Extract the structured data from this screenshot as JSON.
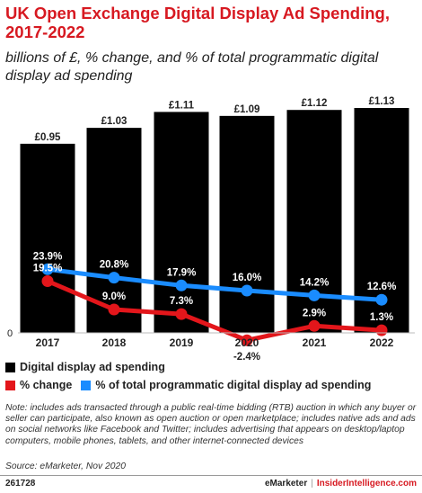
{
  "title": "UK Open Exchange Digital Display Ad Spending, 2017-2022",
  "subtitle": "billions of £, % change, and % of total programmatic digital display ad spending",
  "colors": {
    "bars": "#000000",
    "change": "#e3161b",
    "share": "#1a8cff",
    "title": "#d71921"
  },
  "chart_data": {
    "type": "bar",
    "categories": [
      "2017",
      "2018",
      "2019",
      "2020",
      "2021",
      "2022"
    ],
    "series": [
      {
        "name": "Digital display ad spending",
        "type": "bar",
        "values": [
          0.95,
          1.03,
          1.11,
          1.09,
          1.12,
          1.13
        ],
        "labels": [
          "£0.95",
          "£1.03",
          "£1.11",
          "£1.09",
          "£1.12",
          "£1.13"
        ]
      },
      {
        "name": "% change",
        "type": "line",
        "values": [
          19.5,
          9.0,
          7.3,
          -2.4,
          2.9,
          1.3
        ],
        "labels": [
          "19.5%",
          "9.0%",
          "7.3%",
          "-2.4%",
          "2.9%",
          "1.3%"
        ]
      },
      {
        "name": "% of total programmatic digital display ad spending",
        "type": "line",
        "values": [
          23.9,
          20.8,
          17.9,
          16.0,
          14.2,
          12.6
        ],
        "labels": [
          "23.9%",
          "20.8%",
          "17.9%",
          "16.0%",
          "14.2%",
          "12.6%"
        ]
      }
    ],
    "zero_label": "0",
    "ylim_bars": [
      0,
      1.13
    ],
    "ylim_lines": [
      -4,
      56
    ],
    "legend_position": "bottom-left"
  },
  "legend": {
    "bars": "Digital display ad spending",
    "change": "% change",
    "share": "% of total programmatic digital display ad spending"
  },
  "note": "Note: includes ads transacted through a public real-time bidding (RTB) auction in which any buyer or seller can participate, also known as open auction or open marketplace; includes native ads and ads on social networks like Facebook and Twitter; includes advertising that appears on desktop/laptop computers, mobile phones, tablets, and other internet-connected devices",
  "source": "Source: eMarketer, Nov 2020",
  "footer": {
    "chart_id": "261728",
    "brand1": "eMarketer",
    "separator": "|",
    "brand2": "InsiderIntelligence.com"
  }
}
